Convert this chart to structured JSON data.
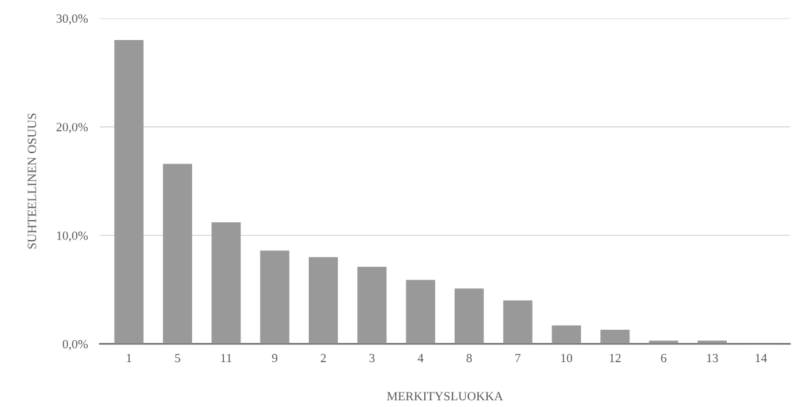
{
  "chart_data": {
    "type": "bar",
    "xlabel": "MERKITYSLUOKKA",
    "ylabel": "SUHTEELLINEN OSUUS",
    "categories": [
      "1",
      "5",
      "11",
      "9",
      "2",
      "3",
      "4",
      "8",
      "7",
      "10",
      "12",
      "6",
      "13",
      "14"
    ],
    "values": [
      28.0,
      16.6,
      11.2,
      8.6,
      8.0,
      7.1,
      5.9,
      5.1,
      4.0,
      1.7,
      1.3,
      0.3,
      0.3,
      0.1
    ],
    "color": "#999999",
    "ylim": [
      0,
      30
    ],
    "yticks": [
      {
        "value": 0,
        "label": "0,0%"
      },
      {
        "value": 10,
        "label": "10,0%"
      },
      {
        "value": 20,
        "label": "20,0%"
      },
      {
        "value": 30,
        "label": "30,0%"
      }
    ],
    "grid": "y",
    "legend": false
  }
}
